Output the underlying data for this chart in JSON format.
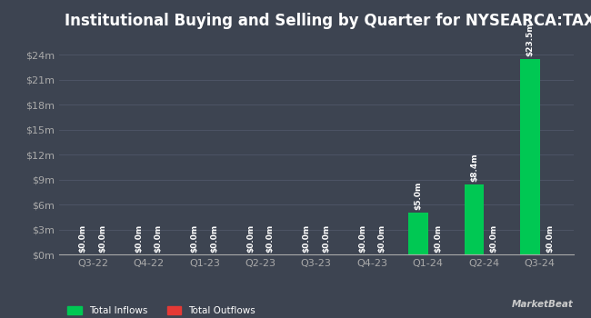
{
  "title": "Institutional Buying and Selling by Quarter for NYSEARCA:TAXX",
  "quarters": [
    "Q3-22",
    "Q4-22",
    "Q1-23",
    "Q2-23",
    "Q3-23",
    "Q4-23",
    "Q1-24",
    "Q2-24",
    "Q3-24"
  ],
  "inflows": [
    0.0,
    0.0,
    0.0,
    0.0,
    0.0,
    0.0,
    5.0,
    8.4,
    23.5
  ],
  "outflows": [
    0.0,
    0.0,
    0.0,
    0.0,
    0.0,
    0.0,
    0.0,
    0.0,
    0.0
  ],
  "inflow_labels": [
    "$0.0m",
    "$0.0m",
    "$0.0m",
    "$0.0m",
    "$0.0m",
    "$0.0m",
    "$5.0m",
    "$8.4m",
    "$23.5m"
  ],
  "outflow_labels": [
    "$0.0m",
    "$0.0m",
    "$0.0m",
    "$0.0m",
    "$0.0m",
    "$0.0m",
    "$0.0m",
    "$0.0m",
    "$0.0m"
  ],
  "inflow_color": "#00c853",
  "outflow_color": "#e53935",
  "bg_color": "#3d4451",
  "text_color": "#ffffff",
  "grid_color": "#505768",
  "axis_label_color": "#aaaaaa",
  "yticks": [
    0,
    3,
    6,
    9,
    12,
    15,
    18,
    21,
    24
  ],
  "ytick_labels": [
    "$0m",
    "$3m",
    "$6m",
    "$9m",
    "$12m",
    "$15m",
    "$18m",
    "$21m",
    "$24m"
  ],
  "ylim": [
    0,
    26
  ],
  "title_fontsize": 12,
  "legend_inflow": "Total Inflows",
  "legend_outflow": "Total Outflows",
  "bar_width": 0.35,
  "label_fontsize": 6.5
}
